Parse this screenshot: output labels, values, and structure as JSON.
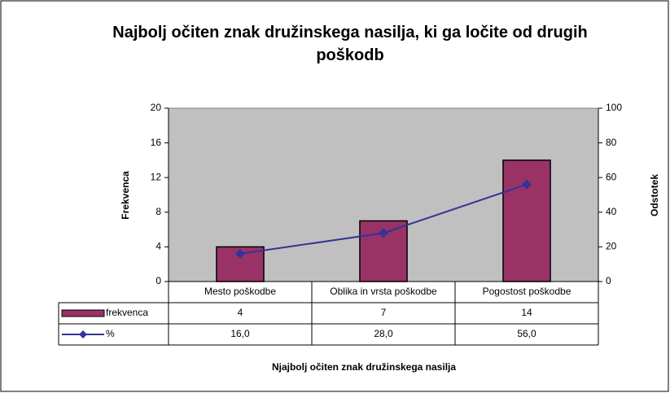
{
  "chart_data": {
    "type": "bar",
    "title": "Najbolj očiten znak družinskega nasilja, ki ga ločite od drugih poškodb",
    "xlabel": "Njajbolj očiten znak družinskega nasilja",
    "ylabel": "Frekvenca",
    "y2label": "Odstotek",
    "categories": [
      "Mesto poškodbe",
      "Oblika in vrsta poškodbe",
      "Pogostost poškodbe"
    ],
    "series": [
      {
        "name": "frekvenca",
        "type": "bar",
        "color": "#993366",
        "values": [
          4,
          7,
          14
        ]
      },
      {
        "name": "%",
        "type": "line",
        "axis": "y2",
        "color": "#333399",
        "values": [
          16,
          28,
          56
        ],
        "value_labels": [
          "16,0",
          "28,0",
          "56,0"
        ]
      }
    ],
    "ylim": [
      0,
      20
    ],
    "yticks": [
      0,
      4,
      8,
      12,
      16,
      20
    ],
    "y2lim": [
      0,
      100
    ],
    "y2ticks": [
      0,
      20,
      40,
      60,
      80,
      100
    ],
    "plot_background": "#c0c0c0"
  }
}
